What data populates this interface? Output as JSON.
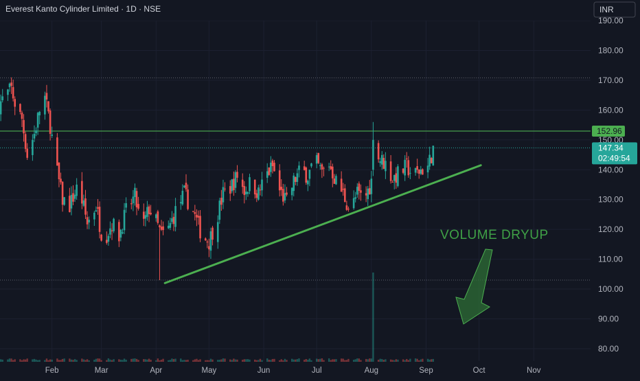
{
  "header": {
    "title": "Everest Kanto Cylinder Limited · 1D · NSE",
    "currency": "INR"
  },
  "chart_data": {
    "type": "candlestick",
    "title": "Everest Kanto Cylinder Limited · 1D · NSE",
    "ylim": [
      75,
      195
    ],
    "y_ticks": [
      "190.00",
      "180.00",
      "170.00",
      "160.00",
      "150.00",
      "140.00",
      "130.00",
      "120.00",
      "110.00",
      "100.00",
      "90.00",
      "80.00"
    ],
    "x_months": [
      {
        "label": "Feb",
        "day": 31
      },
      {
        "label": "Mar",
        "day": 59
      },
      {
        "label": "Apr",
        "day": 90
      },
      {
        "label": "May",
        "day": 120
      },
      {
        "label": "Jun",
        "day": 151
      },
      {
        "label": "Jul",
        "day": 181
      },
      {
        "label": "Aug",
        "day": 212
      },
      {
        "label": "Sep",
        "day": 243
      },
      {
        "label": "Oct",
        "day": 273
      },
      {
        "label": "Nov",
        "day": 304
      }
    ],
    "x_domain": [
      1,
      320
    ],
    "dotted_levels": [
      170.8,
      103.0
    ],
    "resistance": 152.96,
    "resistance_label": "152.96",
    "last_price": 147.34,
    "last_price_label": "147.34",
    "countdown_label": "02:49:54",
    "trendline": {
      "from": {
        "day": 95,
        "price": 102
      },
      "to": {
        "day": 274,
        "price": 141.5
      }
    },
    "annotation": {
      "text": "VOLUME DRYUP"
    },
    "anchors": [
      {
        "day": 1,
        "close": 162
      },
      {
        "day": 5,
        "close": 165
      },
      {
        "day": 8,
        "close": 167
      },
      {
        "day": 11,
        "close": 160
      },
      {
        "day": 14,
        "close": 157
      },
      {
        "day": 17,
        "close": 145
      },
      {
        "day": 21,
        "close": 152
      },
      {
        "day": 24,
        "close": 160
      },
      {
        "day": 27,
        "close": 164
      },
      {
        "day": 30,
        "close": 155
      },
      {
        "day": 33,
        "close": 142
      },
      {
        "day": 37,
        "close": 130
      },
      {
        "day": 41,
        "close": 128
      },
      {
        "day": 46,
        "close": 135
      },
      {
        "day": 51,
        "close": 122
      },
      {
        "day": 56,
        "close": 128
      },
      {
        "day": 60,
        "close": 116
      },
      {
        "day": 65,
        "close": 122
      },
      {
        "day": 69,
        "close": 118
      },
      {
        "day": 73,
        "close": 126
      },
      {
        "day": 78,
        "close": 131
      },
      {
        "day": 82,
        "close": 120
      },
      {
        "day": 86,
        "close": 127
      },
      {
        "day": 89,
        "close": 124
      },
      {
        "day": 93,
        "close": 118
      },
      {
        "day": 97,
        "close": 120
      },
      {
        "day": 101,
        "close": 126
      },
      {
        "day": 106,
        "close": 132
      },
      {
        "day": 111,
        "close": 126
      },
      {
        "day": 116,
        "close": 118
      },
      {
        "day": 120,
        "close": 116
      },
      {
        "day": 124,
        "close": 123
      },
      {
        "day": 128,
        "close": 132
      },
      {
        "day": 132,
        "close": 134
      },
      {
        "day": 136,
        "close": 138
      },
      {
        "day": 140,
        "close": 133
      },
      {
        "day": 144,
        "close": 136
      },
      {
        "day": 148,
        "close": 132
      },
      {
        "day": 152,
        "close": 138
      },
      {
        "day": 156,
        "close": 141
      },
      {
        "day": 160,
        "close": 133
      },
      {
        "day": 164,
        "close": 129
      },
      {
        "day": 168,
        "close": 136
      },
      {
        "day": 172,
        "close": 140
      },
      {
        "day": 176,
        "close": 138
      },
      {
        "day": 180,
        "close": 143
      },
      {
        "day": 184,
        "close": 139
      },
      {
        "day": 188,
        "close": 142
      },
      {
        "day": 192,
        "close": 136
      },
      {
        "day": 196,
        "close": 132
      },
      {
        "day": 200,
        "close": 126
      },
      {
        "day": 204,
        "close": 132
      },
      {
        "day": 208,
        "close": 130
      },
      {
        "day": 212,
        "close": 136
      },
      {
        "day": 213,
        "close": 152
      },
      {
        "day": 216,
        "close": 144
      },
      {
        "day": 220,
        "close": 142
      },
      {
        "day": 224,
        "close": 137
      },
      {
        "day": 228,
        "close": 139
      },
      {
        "day": 232,
        "close": 141
      },
      {
        "day": 236,
        "close": 138
      },
      {
        "day": 240,
        "close": 140
      },
      {
        "day": 244,
        "close": 141
      },
      {
        "day": 247,
        "close": 147
      }
    ],
    "volume_spike_day": 213
  }
}
